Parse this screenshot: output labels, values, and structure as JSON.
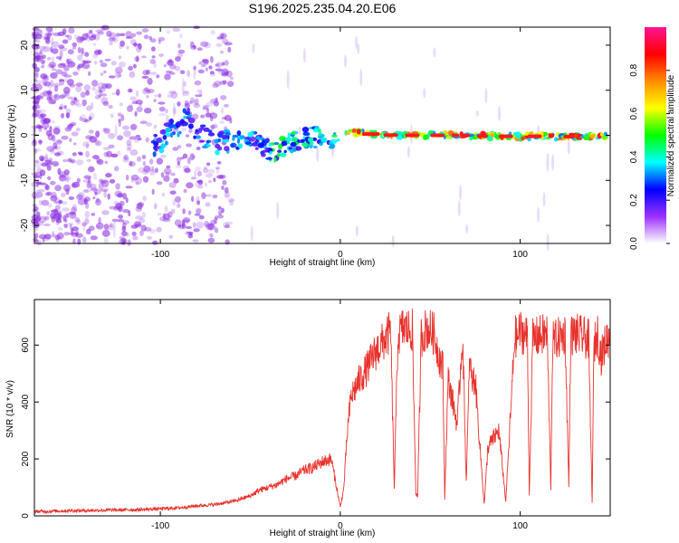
{
  "title": "S196.2025.235.04.20.E06",
  "colors": {
    "snr_line": "#e8322c",
    "axis": "#000000",
    "scatter_low": "#8a2be2",
    "scatter_high": "#ff1a1a"
  },
  "chart_data": [
    {
      "type": "heatmap",
      "name": "spectrogram",
      "xlabel": "Height of straight line (km)",
      "ylabel": "Frequency (Hz)",
      "xlim": [
        -170,
        150
      ],
      "ylim": [
        -24,
        24
      ],
      "xticks": [
        -100,
        0,
        100
      ],
      "xtick_labels": [
        "-100",
        "0",
        "100"
      ],
      "yticks": [
        -20,
        -10,
        0,
        10,
        20
      ],
      "ytick_labels": [
        "-20",
        "-10",
        "0",
        "10",
        "20"
      ],
      "peak_track": {
        "x": [
          -100,
          -95,
          -90,
          -85,
          -80,
          -70,
          -60,
          -50,
          -40,
          -35,
          -30,
          -25,
          -20,
          -15,
          -10,
          -5,
          0,
          5,
          10,
          20,
          30,
          40,
          50,
          60,
          70,
          80,
          90,
          100,
          110,
          120,
          130,
          140,
          148
        ],
        "y": [
          -2,
          1,
          2,
          4,
          1,
          -2,
          -1,
          0,
          -3,
          -4,
          -2,
          -1,
          -1,
          -0.5,
          0,
          -0.5,
          0,
          0.5,
          0.5,
          0.2,
          0,
          0,
          0,
          0,
          0,
          -0.2,
          -0.2,
          -0.3,
          -0.2,
          -0.3,
          -0.3,
          -0.3,
          -0.4
        ]
      },
      "colorbar": {
        "label": "Normalized spectral amplitude",
        "range": [
          0,
          1
        ],
        "ticks": [
          0.0,
          0.2,
          0.4,
          0.6,
          0.8
        ],
        "tick_labels": [
          "0.0",
          "0.2",
          "0.4",
          "0.6",
          "0.8"
        ],
        "colors": [
          "#ffffff",
          "#9b30ff",
          "#0000ff",
          "#00ffff",
          "#00ff00",
          "#ffff00",
          "#ff8c00",
          "#ff0000",
          "#ff1493"
        ]
      }
    },
    {
      "type": "line",
      "name": "snr",
      "xlabel": "Height of straight line (km)",
      "ylabel": "SNR (10 * v/v)",
      "xlim": [
        -170,
        150
      ],
      "ylim": [
        0,
        760
      ],
      "xticks": [
        -100,
        0,
        100
      ],
      "xtick_labels": [
        "-100",
        "0",
        "100"
      ],
      "yticks": [
        0,
        200,
        400,
        600
      ],
      "ytick_labels": [
        "0",
        "200",
        "400",
        "600"
      ],
      "series": [
        {
          "name": "SNR",
          "x": [
            -170,
            -150,
            -130,
            -110,
            -100,
            -90,
            -80,
            -70,
            -60,
            -50,
            -45,
            -40,
            -35,
            -30,
            -25,
            -20,
            -15,
            -10,
            -5,
            0,
            2,
            4,
            6,
            10,
            15,
            20,
            25,
            28,
            30,
            32,
            35,
            40,
            42,
            43,
            45,
            48,
            52,
            55,
            57,
            58,
            60,
            65,
            68,
            70,
            72,
            73,
            75,
            78,
            80,
            82,
            85,
            88,
            90,
            92,
            95,
            97,
            98,
            100,
            104,
            105,
            107,
            110,
            115,
            117,
            118,
            120,
            125,
            127,
            128,
            130,
            138,
            140,
            141,
            143,
            145,
            148,
            150
          ],
          "y": [
            15,
            18,
            20,
            22,
            25,
            28,
            35,
            40,
            50,
            70,
            90,
            100,
            110,
            130,
            140,
            160,
            170,
            190,
            200,
            30,
            100,
            300,
            420,
            470,
            520,
            580,
            620,
            650,
            100,
            630,
            660,
            650,
            80,
            70,
            630,
            660,
            640,
            560,
            520,
            60,
            480,
            320,
            640,
            120,
            560,
            470,
            480,
            210,
            40,
            240,
            270,
            300,
            180,
            50,
            400,
            640,
            620,
            650,
            630,
            80,
            620,
            630,
            640,
            100,
            610,
            620,
            640,
            100,
            630,
            640,
            620,
            50,
            600,
            640,
            560,
            620,
            630
          ]
        }
      ]
    }
  ]
}
